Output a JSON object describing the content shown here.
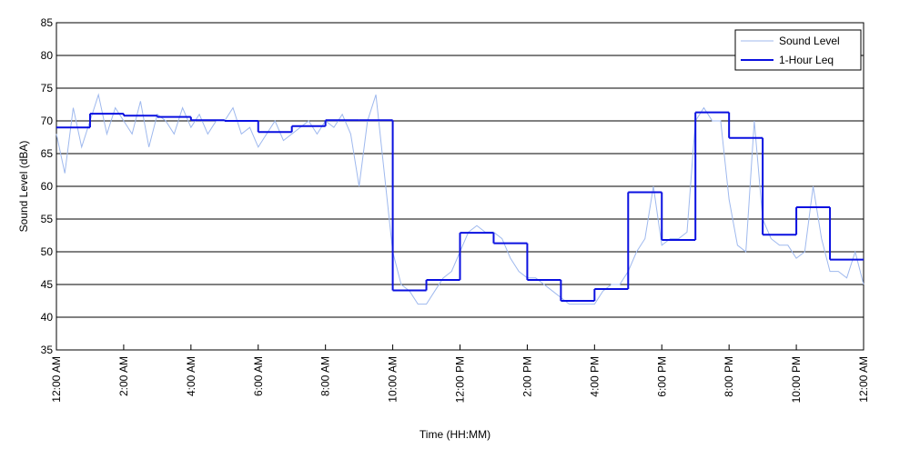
{
  "chart_data": {
    "type": "line",
    "xlabel": "Time (HH:MM)",
    "ylabel": "Sound Level (dBA)",
    "xlim": [
      0,
      24
    ],
    "ylim": [
      35,
      85
    ],
    "xticks": [
      {
        "value": 0,
        "label": "12:00 AM"
      },
      {
        "value": 2,
        "label": "2:00 AM"
      },
      {
        "value": 4,
        "label": "4:00 AM"
      },
      {
        "value": 6,
        "label": "6:00 AM"
      },
      {
        "value": 8,
        "label": "8:00 AM"
      },
      {
        "value": 10,
        "label": "10:00 AM"
      },
      {
        "value": 12,
        "label": "12:00 PM"
      },
      {
        "value": 14,
        "label": "2:00 PM"
      },
      {
        "value": 16,
        "label": "4:00 PM"
      },
      {
        "value": 18,
        "label": "6:00 PM"
      },
      {
        "value": 20,
        "label": "8:00 PM"
      },
      {
        "value": 22,
        "label": "10:00 PM"
      },
      {
        "value": 24,
        "label": "12:00 AM"
      }
    ],
    "yticks": [
      35,
      40,
      45,
      50,
      55,
      60,
      65,
      70,
      75,
      80,
      85
    ],
    "grid": true,
    "legend": "upper right",
    "series": [
      {
        "name": "Sound Level",
        "color": "#9fb9ee",
        "x": [
          0,
          0.25,
          0.5,
          0.75,
          1,
          1.25,
          1.5,
          1.75,
          2,
          2.25,
          2.5,
          2.75,
          3,
          3.25,
          3.5,
          3.75,
          4,
          4.25,
          4.5,
          4.75,
          5,
          5.25,
          5.5,
          5.75,
          6,
          6.25,
          6.5,
          6.75,
          7,
          7.25,
          7.5,
          7.75,
          8,
          8.25,
          8.5,
          8.75,
          9,
          9.25,
          9.5,
          9.75,
          10,
          10.25,
          10.5,
          10.75,
          11,
          11.25,
          11.5,
          11.75,
          12,
          12.25,
          12.5,
          12.75,
          13,
          13.25,
          13.5,
          13.75,
          14,
          14.25,
          14.5,
          14.75,
          15,
          15.25,
          15.5,
          15.75,
          16,
          16.25,
          16.5,
          16.75,
          17,
          17.25,
          17.5,
          17.75,
          18,
          18.25,
          18.5,
          18.75,
          19,
          19.25,
          19.5,
          19.75,
          20,
          20.25,
          20.5,
          20.75,
          21,
          21.25,
          21.5,
          21.75,
          22,
          22.25,
          22.5,
          22.75,
          23,
          23.25,
          23.5,
          23.75,
          24
        ],
        "values": [
          68,
          62,
          72,
          66,
          70,
          74,
          68,
          72,
          70,
          68,
          73,
          66,
          71,
          70,
          68,
          72,
          69,
          71,
          68,
          70,
          70,
          72,
          68,
          69,
          66,
          68,
          70,
          67,
          68,
          69,
          70,
          68,
          70,
          69,
          71,
          68,
          60,
          70,
          74,
          62,
          50,
          45,
          44,
          42,
          42,
          44,
          46,
          47,
          50,
          53,
          54,
          53,
          53,
          52,
          49,
          47,
          46,
          46,
          45,
          44,
          43,
          42,
          42,
          42,
          42,
          44,
          45,
          45,
          47,
          50,
          52,
          60,
          51,
          52,
          52,
          53,
          70,
          72,
          70,
          70,
          58,
          51,
          50,
          70,
          55,
          52,
          51,
          51,
          49,
          50,
          60,
          52,
          47,
          47,
          46,
          50,
          45
        ]
      },
      {
        "name": "1-Hour Leq",
        "color": "#0a10e0",
        "step": "post",
        "x": [
          0,
          1,
          2,
          3,
          4,
          5,
          6,
          7,
          8,
          9,
          10,
          11,
          12,
          13,
          14,
          15,
          16,
          17,
          18,
          19,
          20,
          21,
          22,
          23
        ],
        "values": [
          69.0,
          71.1,
          70.8,
          70.6,
          70.1,
          70.0,
          68.3,
          69.2,
          70.1,
          70.1,
          44.1,
          45.7,
          52.9,
          51.3,
          45.7,
          42.5,
          44.3,
          59.1,
          51.8,
          71.3,
          67.4,
          52.6,
          56.8,
          48.8
        ]
      }
    ]
  }
}
